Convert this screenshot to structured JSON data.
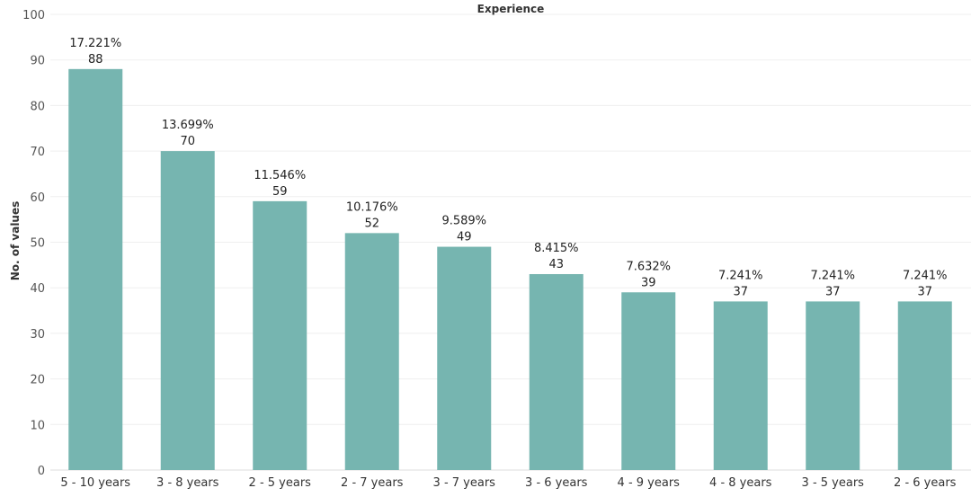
{
  "chart_data": {
    "type": "bar",
    "title": "Experience",
    "xlabel": "",
    "ylabel": "No. of values",
    "ylim": [
      0,
      100
    ],
    "yticks": [
      0,
      10,
      20,
      30,
      40,
      50,
      60,
      70,
      80,
      90,
      100
    ],
    "categories": [
      "5 - 10 years",
      "3 - 8 years",
      "2 - 5 years",
      "2 - 7 years",
      "3 - 7 years",
      "3 - 6 years",
      "4 - 9 years",
      "4 - 8 years",
      "3 - 5 years",
      "2 - 6 years"
    ],
    "values": [
      88,
      70,
      59,
      52,
      49,
      43,
      39,
      37,
      37,
      37
    ],
    "percent_labels": [
      "17.221%",
      "13.699%",
      "11.546%",
      "10.176%",
      "9.589%",
      "8.415%",
      "7.632%",
      "7.241%",
      "7.241%",
      "7.241%"
    ],
    "bar_color": "#76b5b0",
    "grid": true,
    "legend": "none"
  }
}
